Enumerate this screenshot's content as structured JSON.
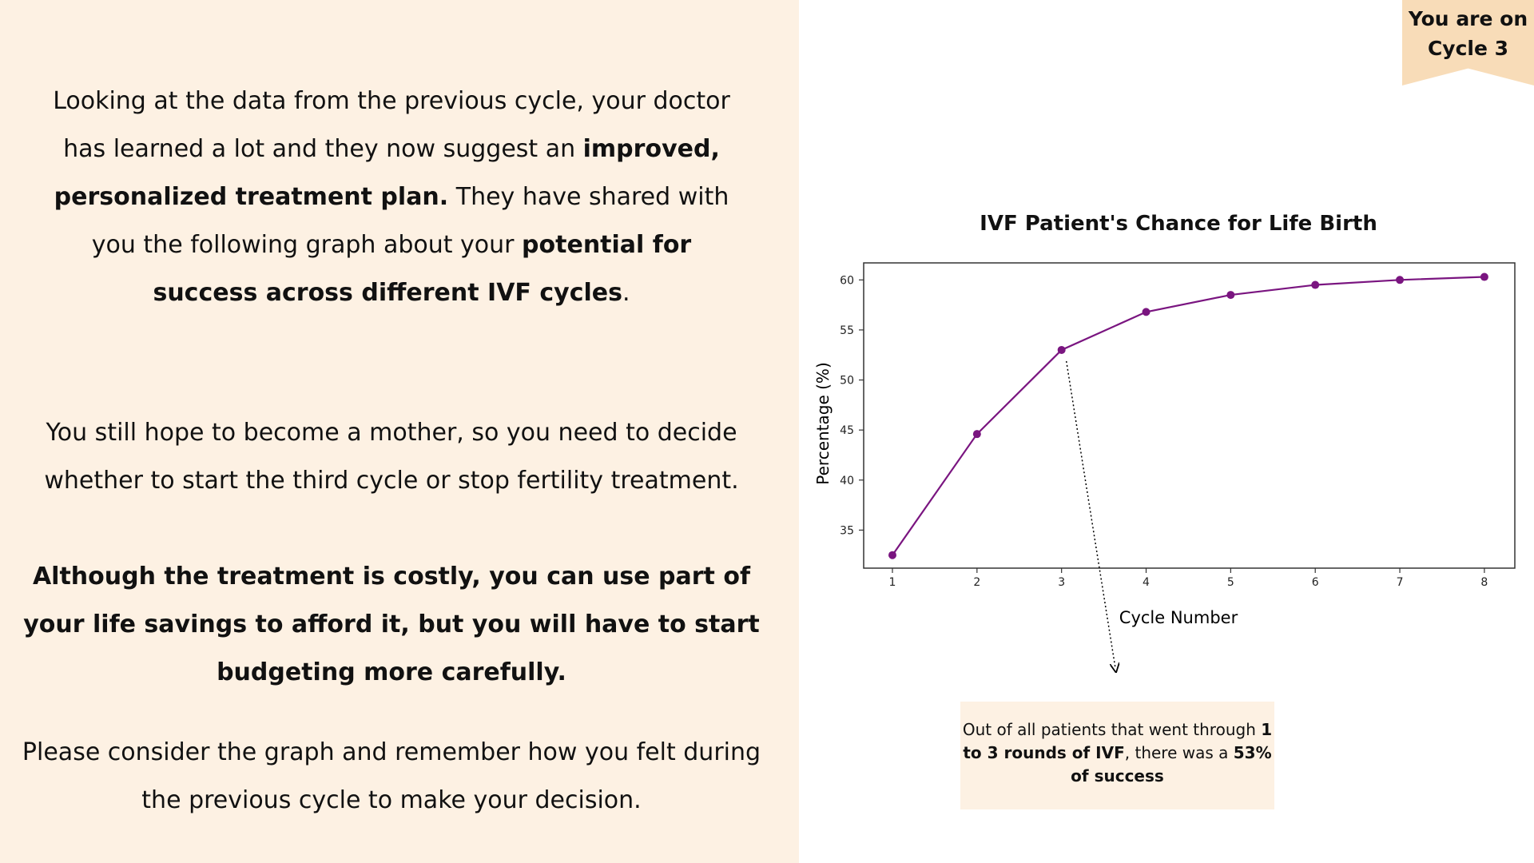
{
  "intro": {
    "part1": "Looking at the data from the previous cycle, your doctor has learned a lot and they now suggest an ",
    "bold1": "improved, personalized treatment plan.",
    "part2": " They have shared with you the following graph about your ",
    "bold2": "potential for success across different IVF cycles",
    "part3": "."
  },
  "decision_text": "You still hope to become a mother, so you need to decide whether to start the third cycle or stop fertility treatment.",
  "cost_text": "Although the treatment is costly, you can use part of your life savings to afford it, but you will have to start budgeting more carefully.",
  "consider_text": "Please consider the graph and remember how you felt during the previous cycle to make your decision.",
  "cycle_badge": {
    "line1": "You are on",
    "line2": "Cycle 3",
    "color": "#f8dcb8"
  },
  "chart_data": {
    "type": "line",
    "title": "IVF Patient's Chance for Life Birth",
    "xlabel": "Cycle Number",
    "ylabel": "Percentage (%)",
    "x": [
      1,
      2,
      3,
      4,
      5,
      6,
      7,
      8
    ],
    "series": [
      {
        "values": [
          32.5,
          44.6,
          53.0,
          56.8,
          58.5,
          59.5,
          60.0,
          60.3
        ]
      }
    ],
    "xticks": [
      "1",
      "2",
      "3",
      "4",
      "5",
      "6",
      "7",
      "8"
    ],
    "yticks": [
      "35",
      "40",
      "45",
      "50",
      "55",
      "60"
    ],
    "xlim": [
      0.66,
      8.36
    ],
    "ylim": [
      31.2,
      61.7
    ],
    "grid": false,
    "line_color": "#7a1580",
    "annotation_at_x": 3
  },
  "callout": {
    "part1": "Out of all patients that went through ",
    "bold1": "1 to 3 rounds of IVF",
    "part2": ", there was a ",
    "bold2": "53% of success"
  },
  "colors": {
    "panel_background": "#fdf1e3",
    "callout_background": "#fdf1e3"
  }
}
